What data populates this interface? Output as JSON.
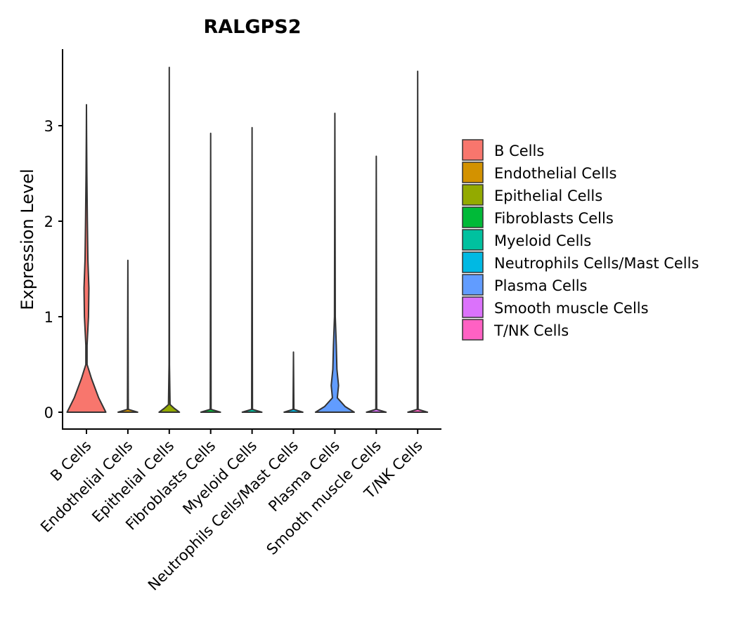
{
  "chart_data": {
    "type": "violin",
    "title": "RALGPS2",
    "xlabel": "",
    "ylabel": "Expression Level",
    "ylim": [
      -0.18,
      3.8
    ],
    "yticks": [
      0,
      1,
      2,
      3
    ],
    "grid": false,
    "legend_position": "right",
    "categories": [
      "B Cells",
      "Endothelial Cells",
      "Epithelial Cells",
      "Fibroblasts Cells",
      "Myeloid Cells",
      "Neutrophils Cells/Mast Cells",
      "Plasma Cells",
      "Smooth muscle Cells",
      "T/NK Cells"
    ],
    "colors": [
      "#F8766D",
      "#D39200",
      "#93AA00",
      "#00BA38",
      "#00C19F",
      "#00B9E3",
      "#619CFF",
      "#DB72FB",
      "#FF61C3"
    ],
    "series": [
      {
        "name": "B Cells",
        "max": 3.22,
        "profile": [
          [
            0,
            0.95
          ],
          [
            0.15,
            0.6
          ],
          [
            0.35,
            0.25
          ],
          [
            0.5,
            0.03
          ],
          [
            0.7,
            0.03
          ],
          [
            1.0,
            0.1
          ],
          [
            1.3,
            0.12
          ],
          [
            1.6,
            0.07
          ],
          [
            2.0,
            0.045
          ],
          [
            2.5,
            0.02
          ],
          [
            2.9,
            0.007
          ],
          [
            3.22,
            0
          ]
        ]
      },
      {
        "name": "Endothelial Cells",
        "max": 1.59,
        "profile": [
          [
            0,
            0.48
          ],
          [
            0.03,
            0.02
          ],
          [
            1.59,
            0
          ]
        ]
      },
      {
        "name": "Epithelial Cells",
        "max": 3.61,
        "profile": [
          [
            0,
            0.5
          ],
          [
            0.04,
            0.25
          ],
          [
            0.08,
            0.04
          ],
          [
            0.5,
            0.01
          ],
          [
            3.61,
            0
          ]
        ]
      },
      {
        "name": "Fibroblasts Cells",
        "max": 2.92,
        "profile": [
          [
            0,
            0.48
          ],
          [
            0.03,
            0.02
          ],
          [
            2.92,
            0
          ]
        ]
      },
      {
        "name": "Myeloid Cells",
        "max": 2.98,
        "profile": [
          [
            0,
            0.48
          ],
          [
            0.03,
            0.02
          ],
          [
            2.98,
            0
          ]
        ]
      },
      {
        "name": "Neutrophils Cells/Mast Cells",
        "max": 0.63,
        "profile": [
          [
            0,
            0.46
          ],
          [
            0.03,
            0.02
          ],
          [
            0.63,
            0
          ]
        ]
      },
      {
        "name": "Plasma Cells",
        "max": 3.13,
        "profile": [
          [
            0,
            0.95
          ],
          [
            0.06,
            0.5
          ],
          [
            0.15,
            0.12
          ],
          [
            0.28,
            0.18
          ],
          [
            0.45,
            0.1
          ],
          [
            0.7,
            0.07
          ],
          [
            1.0,
            0.02
          ],
          [
            3.13,
            0
          ]
        ]
      },
      {
        "name": "Smooth muscle Cells",
        "max": 2.68,
        "profile": [
          [
            0,
            0.48
          ],
          [
            0.03,
            0.02
          ],
          [
            2.68,
            0
          ]
        ]
      },
      {
        "name": "T/NK Cells",
        "max": 3.57,
        "profile": [
          [
            0,
            0.48
          ],
          [
            0.03,
            0.02
          ],
          [
            3.57,
            0
          ]
        ]
      }
    ]
  }
}
